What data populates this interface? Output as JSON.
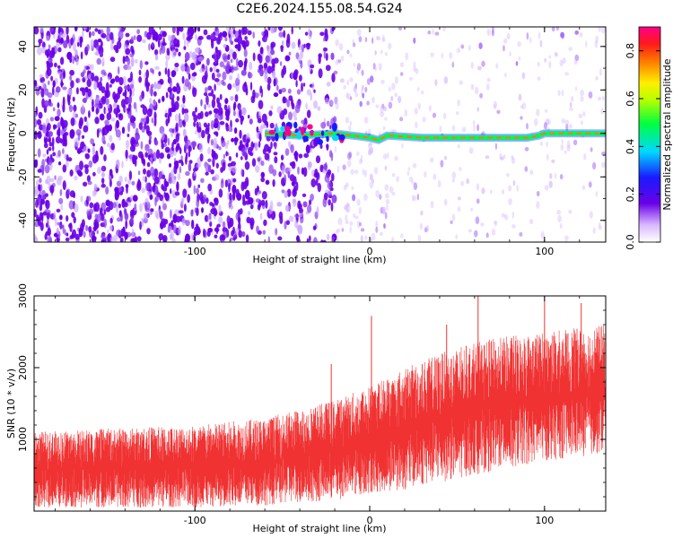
{
  "title": "C2E6.2024.155.08.54.G24",
  "colors": {
    "snr_trace": "#f03232",
    "axis": "#000000",
    "background": "#ffffff"
  },
  "chart_data": [
    {
      "type": "heatmap",
      "xlabel": "Height of straight line (km)",
      "ylabel": "Frequency (Hz)",
      "xlim": [
        -192,
        135
      ],
      "ylim": [
        -50,
        49
      ],
      "x_ticks": [
        -100,
        0,
        100
      ],
      "y_ticks": [
        -40,
        -20,
        0,
        20,
        40
      ],
      "x_tick_labels": [
        "-100",
        "0",
        "100"
      ],
      "y_tick_labels": [
        "-40",
        "-20",
        "0",
        "20",
        "40"
      ],
      "colorbar": {
        "label": "Normalized spectral amplitude",
        "range": [
          0.0,
          0.9
        ],
        "ticks": [
          0.0,
          0.2,
          0.4,
          0.6,
          0.8
        ],
        "tick_labels": [
          "0.0",
          "0.2",
          "0.4",
          "0.6",
          "0.8"
        ],
        "colormap": "gist_ncar-like (white, violet, blue, cyan, green, yellow, orange, red, magenta)"
      },
      "carrier_trace": [
        {
          "x": -60,
          "y": 0
        },
        {
          "x": -40,
          "y": -1
        },
        {
          "x": -20,
          "y": 0
        },
        {
          "x": -10,
          "y": -1
        },
        {
          "x": 0,
          "y": -2
        },
        {
          "x": 5,
          "y": -3
        },
        {
          "x": 10,
          "y": -1
        },
        {
          "x": 30,
          "y": -2
        },
        {
          "x": 60,
          "y": -2
        },
        {
          "x": 90,
          "y": -2
        },
        {
          "x": 97,
          "y": -1
        },
        {
          "x": 100,
          "y": 0
        },
        {
          "x": 120,
          "y": 0
        },
        {
          "x": 135,
          "y": 0
        }
      ]
    },
    {
      "type": "line",
      "xlabel": "Height of straight line (km)",
      "ylabel": "SNR (10 * v/v)",
      "xlim": [
        -192,
        135
      ],
      "ylim": [
        0,
        3000
      ],
      "x_ticks": [
        -100,
        0,
        100
      ],
      "y_ticks": [
        1000,
        2000,
        3000
      ],
      "x_tick_labels": [
        "-100",
        "0",
        "100"
      ],
      "y_tick_labels": [
        "1000",
        "2000",
        "3000"
      ],
      "series": [
        {
          "envelope": [
            {
              "x": -192,
              "low": 50,
              "mid": 550,
              "high": 1100
            },
            {
              "x": -150,
              "low": 50,
              "mid": 560,
              "high": 1150
            },
            {
              "x": -100,
              "low": 50,
              "mid": 580,
              "high": 1200
            },
            {
              "x": -60,
              "low": 80,
              "mid": 650,
              "high": 1300
            },
            {
              "x": -20,
              "low": 150,
              "mid": 800,
              "high": 1550
            },
            {
              "x": 0,
              "low": 250,
              "mid": 950,
              "high": 1750
            },
            {
              "x": 20,
              "low": 300,
              "mid": 1100,
              "high": 2000
            },
            {
              "x": 40,
              "low": 400,
              "mid": 1300,
              "high": 2200
            },
            {
              "x": 60,
              "low": 500,
              "mid": 1450,
              "high": 2350
            },
            {
              "x": 80,
              "low": 600,
              "mid": 1550,
              "high": 2450
            },
            {
              "x": 100,
              "low": 700,
              "mid": 1650,
              "high": 2500
            },
            {
              "x": 135,
              "low": 800,
              "mid": 1750,
              "high": 2600
            }
          ],
          "peaks": [
            {
              "x": 1,
              "y": 2720
            },
            {
              "x": 62,
              "y": 3000
            },
            {
              "x": 100,
              "y": 2950
            },
            {
              "x": 121,
              "y": 2900
            },
            {
              "x": 44,
              "y": 2600
            },
            {
              "x": -22,
              "y": 2050
            }
          ]
        }
      ]
    }
  ]
}
